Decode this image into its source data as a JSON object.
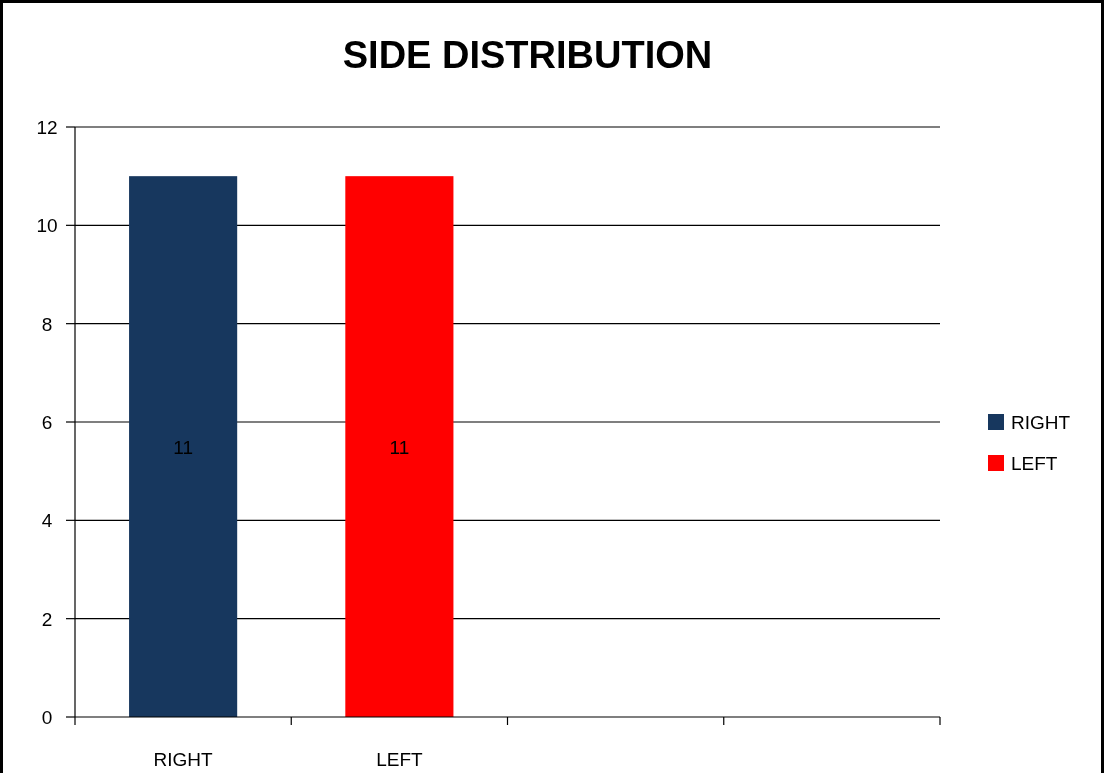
{
  "chart_data": {
    "type": "bar",
    "title": "SIDE DISTRIBUTION",
    "categories": [
      "RIGHT",
      "LEFT",
      null,
      null
    ],
    "series": [
      {
        "name": "RIGHT",
        "color": "#17375e",
        "values": [
          11,
          null,
          null,
          null
        ]
      },
      {
        "name": "LEFT",
        "color": "#ff0000",
        "values": [
          null,
          11,
          null,
          null
        ]
      }
    ],
    "stacked": true,
    "ylim": [
      0,
      12
    ],
    "yticks": [
      0,
      2,
      4,
      6,
      8,
      10,
      12
    ],
    "grid": "y",
    "legend": "right",
    "data_labels": true
  }
}
